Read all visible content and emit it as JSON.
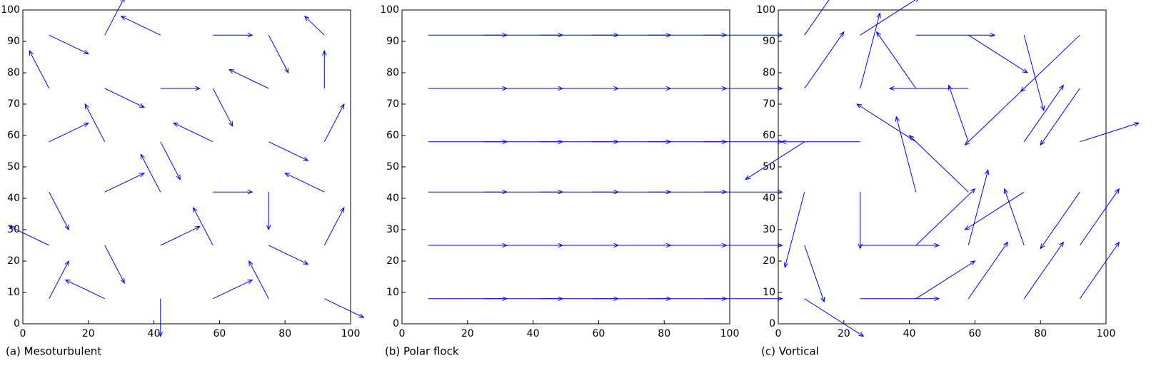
{
  "chart_data": [
    {
      "type": "quiver",
      "caption": "(a) Mesoturbulent",
      "color": "#0000ff",
      "xlim": [
        0,
        100
      ],
      "ylim": [
        0,
        100
      ],
      "xticks": [
        0,
        20,
        40,
        60,
        80,
        100
      ],
      "yticks": [
        0,
        10,
        20,
        30,
        40,
        50,
        60,
        70,
        80,
        90,
        100
      ],
      "x": [
        8,
        25,
        42,
        58,
        75,
        92
      ],
      "y": [
        8,
        25,
        42,
        58,
        75,
        92
      ],
      "u": [
        [
          1,
          -2,
          0,
          2,
          -1,
          2
        ],
        [
          -2,
          1,
          2,
          -1,
          2,
          1
        ],
        [
          1,
          2,
          -1,
          2,
          0,
          -2
        ],
        [
          2,
          -1,
          1,
          -2,
          2,
          1
        ],
        [
          -1,
          2,
          2,
          1,
          -2,
          0
        ],
        [
          2,
          1,
          -2,
          2,
          1,
          -1
        ]
      ],
      "v": [
        [
          2,
          1,
          -2,
          1,
          2,
          -1
        ],
        [
          1,
          -2,
          1,
          2,
          -1,
          2
        ],
        [
          -2,
          1,
          2,
          0,
          -2,
          1
        ],
        [
          1,
          2,
          -2,
          1,
          -1,
          2
        ],
        [
          2,
          -1,
          0,
          -2,
          1,
          2
        ],
        [
          -1,
          2,
          1,
          0,
          -2,
          1
        ]
      ]
    },
    {
      "type": "quiver",
      "caption": "(b) Polar flock",
      "color": "#0000ff",
      "xlim": [
        0,
        100
      ],
      "ylim": [
        0,
        100
      ],
      "xticks": [
        0,
        20,
        40,
        60,
        80,
        100
      ],
      "yticks": [
        0,
        10,
        20,
        30,
        40,
        50,
        60,
        70,
        80,
        90,
        100
      ],
      "x": [
        8,
        25,
        42,
        58,
        75,
        92
      ],
      "y": [
        8,
        25,
        42,
        58,
        75,
        92
      ],
      "u": [
        [
          4,
          4,
          4,
          4,
          4,
          4
        ],
        [
          4,
          4,
          4,
          4,
          4,
          4
        ],
        [
          4,
          4,
          4,
          4,
          4,
          4
        ],
        [
          4,
          4,
          4,
          4,
          4,
          4
        ],
        [
          4,
          4,
          4,
          4,
          4,
          4
        ],
        [
          4,
          4,
          4,
          4,
          4,
          4
        ]
      ],
      "v": [
        [
          0,
          0,
          0,
          0,
          0,
          0
        ],
        [
          0,
          0,
          0,
          0,
          0,
          0
        ],
        [
          0,
          0,
          0,
          0,
          0,
          0
        ],
        [
          0,
          0,
          0,
          0,
          0,
          0
        ],
        [
          0,
          0,
          0,
          0,
          0,
          0
        ],
        [
          0,
          0,
          0,
          0,
          0,
          0
        ]
      ]
    },
    {
      "type": "quiver",
      "caption": "(c) Vortical",
      "color": "#0000ff",
      "xlim": [
        0,
        100
      ],
      "ylim": [
        0,
        100
      ],
      "xticks": [
        0,
        20,
        40,
        60,
        80,
        100
      ],
      "yticks": [
        0,
        10,
        20,
        30,
        40,
        50,
        60,
        70,
        80,
        90,
        100
      ],
      "x": [
        8,
        25,
        42,
        58,
        75,
        92
      ],
      "y": [
        8,
        25,
        42,
        58,
        75,
        92
      ],
      "u": [
        [
          3,
          4,
          3,
          2,
          2,
          2
        ],
        [
          1,
          4,
          3,
          1,
          -1,
          2
        ],
        [
          -1,
          0,
          -1,
          -3,
          -3,
          -2
        ],
        [
          -3,
          -4,
          -3,
          -1,
          2,
          3
        ],
        [
          2,
          1,
          -2,
          -4,
          -3,
          -2
        ],
        [
          2,
          3,
          4,
          3,
          1,
          -3
        ]
      ],
      "v": [
        [
          -2,
          0,
          2,
          3,
          3,
          3
        ],
        [
          -3,
          0,
          3,
          4,
          3,
          3
        ],
        [
          -4,
          -3,
          4,
          3,
          -2,
          -3
        ],
        [
          -2,
          0,
          2,
          3,
          3,
          1
        ],
        [
          3,
          4,
          3,
          0,
          -3,
          -3
        ],
        [
          3,
          2,
          0,
          -2,
          -4,
          -3
        ]
      ]
    }
  ]
}
